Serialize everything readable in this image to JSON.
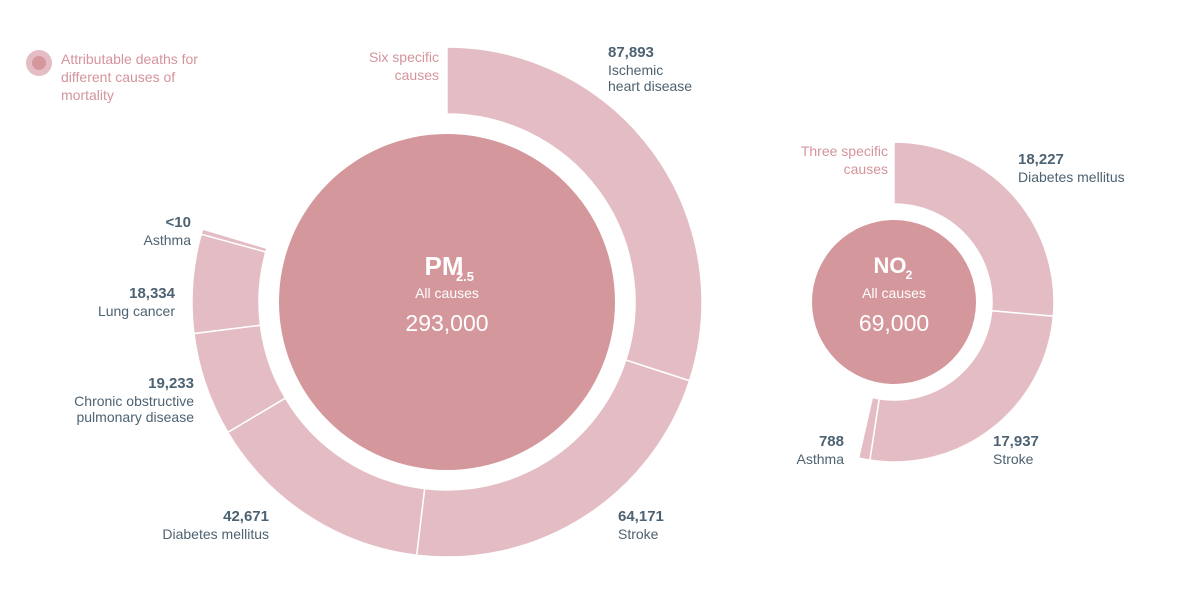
{
  "legend": {
    "label": "Attributable deaths for different causes of mortality"
  },
  "colors": {
    "center": "#d4979c",
    "ring": "#e3bcc4",
    "group_label": "#d4949b",
    "value_text": "#4d6272",
    "center_text": "#ffffff"
  },
  "chart_data": [
    {
      "type": "pie",
      "pollutant": "PM",
      "subscript": "2.5",
      "center_label": "All causes",
      "center_value": "293,000",
      "group_label": "Six specific causes",
      "slices": [
        {
          "label": "Ischemic heart disease",
          "value": 87893,
          "value_label": "87,893"
        },
        {
          "label": "Stroke",
          "value": 64171,
          "value_label": "64,171"
        },
        {
          "label": "Diabetes mellitus",
          "value": 42671,
          "value_label": "42,671"
        },
        {
          "label": "Chronic obstructive pulmonary disease",
          "value": 19233,
          "value_label": "19,233"
        },
        {
          "label": "Lung cancer",
          "value": 18334,
          "value_label": "18,334"
        },
        {
          "label": "Asthma",
          "value": 10,
          "value_label": "<10"
        }
      ]
    },
    {
      "type": "pie",
      "pollutant": "NO",
      "subscript": "2",
      "center_label": "All causes",
      "center_value": "69,000",
      "group_label": "Three specific causes",
      "slices": [
        {
          "label": "Diabetes mellitus",
          "value": 18227,
          "value_label": "18,227"
        },
        {
          "label": "Stroke",
          "value": 17937,
          "value_label": "17,937"
        },
        {
          "label": "Asthma",
          "value": 788,
          "value_label": "788"
        }
      ]
    }
  ]
}
